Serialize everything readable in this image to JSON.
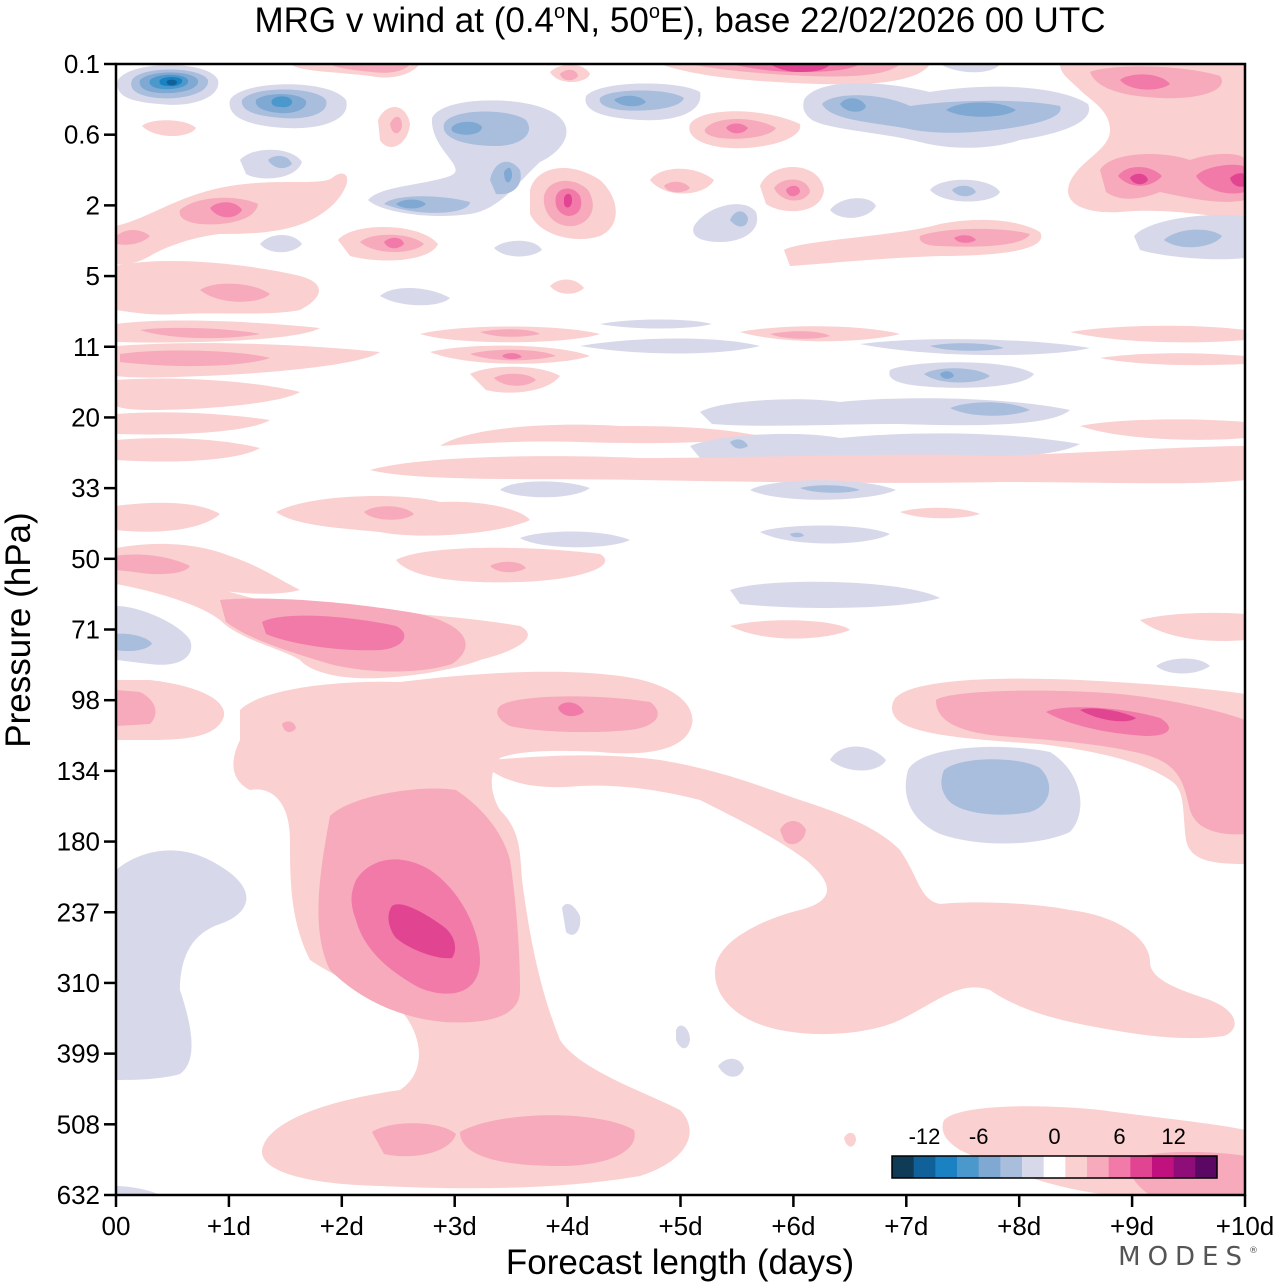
{
  "chart_data": {
    "type": "heatmap",
    "title_prefix": "MRG v wind at (0.4",
    "title_lat_unit": "N, 50",
    "title_lon_unit": "E),  base 22/02/2026  00 UTC",
    "title_degree": "o",
    "xlabel": "Forecast length (days)",
    "ylabel": "Pressure (hPa)",
    "x_ticks": [
      "00",
      "+1d",
      "+2d",
      "+3d",
      "+4d",
      "+5d",
      "+6d",
      "+7d",
      "+8d",
      "+9d",
      "+10d"
    ],
    "x_range_days": [
      0,
      10
    ],
    "y_ticks": [
      "0.1",
      "0.6",
      "2",
      "5",
      "11",
      "20",
      "33",
      "50",
      "71",
      "98",
      "134",
      "180",
      "237",
      "310",
      "399",
      "508",
      "632"
    ],
    "y_range_hPa": [
      0.1,
      632
    ],
    "levels": [
      -15,
      -12,
      -10,
      -8,
      -6,
      -4,
      -2,
      2,
      4,
      6,
      8,
      10,
      12,
      15
    ],
    "colorbar_colors": [
      "#0f3b57",
      "#10609a",
      "#1a82c2",
      "#4a98cc",
      "#7fa8d2",
      "#a9bddd",
      "#d7d9ea",
      "#ffffff",
      "#fad0d0",
      "#f6aabb",
      "#f17aa8",
      "#e14592",
      "#c1117e",
      "#8e0d78",
      "#5a0863"
    ],
    "colorbar_labels": [
      "-12",
      "-6",
      "0",
      "6",
      "12"
    ],
    "features": [
      {
        "day": 0.5,
        "hPa": 0.2,
        "value": -12
      },
      {
        "day": 1.5,
        "hPa": 0.35,
        "value": -8
      },
      {
        "day": 3.0,
        "hPa": 0.6,
        "value": -6
      },
      {
        "day": 5.5,
        "hPa": 0.6,
        "value": 6
      },
      {
        "day": 6.5,
        "hPa": 0.35,
        "value": -6
      },
      {
        "day": 7.5,
        "hPa": 0.5,
        "value": -6
      },
      {
        "day": 6.0,
        "hPa": 0.1,
        "value": 8
      },
      {
        "day": 9.0,
        "hPa": 1.5,
        "value": 8
      },
      {
        "day": 4.0,
        "hPa": 2,
        "value": 10
      },
      {
        "day": 1.0,
        "hPa": 2,
        "value": 6
      },
      {
        "day": 1.5,
        "hPa": 71,
        "value": 8
      },
      {
        "day": 3.5,
        "hPa": 98,
        "value": 6
      },
      {
        "day": 9.0,
        "hPa": 98,
        "value": 8
      },
      {
        "day": 7.8,
        "hPa": 150,
        "value": -6
      },
      {
        "day": 2.8,
        "hPa": 260,
        "value": 10
      },
      {
        "day": 3.0,
        "hPa": 560,
        "value": 4
      },
      {
        "day": 0.3,
        "hPa": 350,
        "value": -2
      }
    ]
  },
  "legend_position": "bottom-right",
  "brand": "MODES",
  "brand_mark": "®"
}
